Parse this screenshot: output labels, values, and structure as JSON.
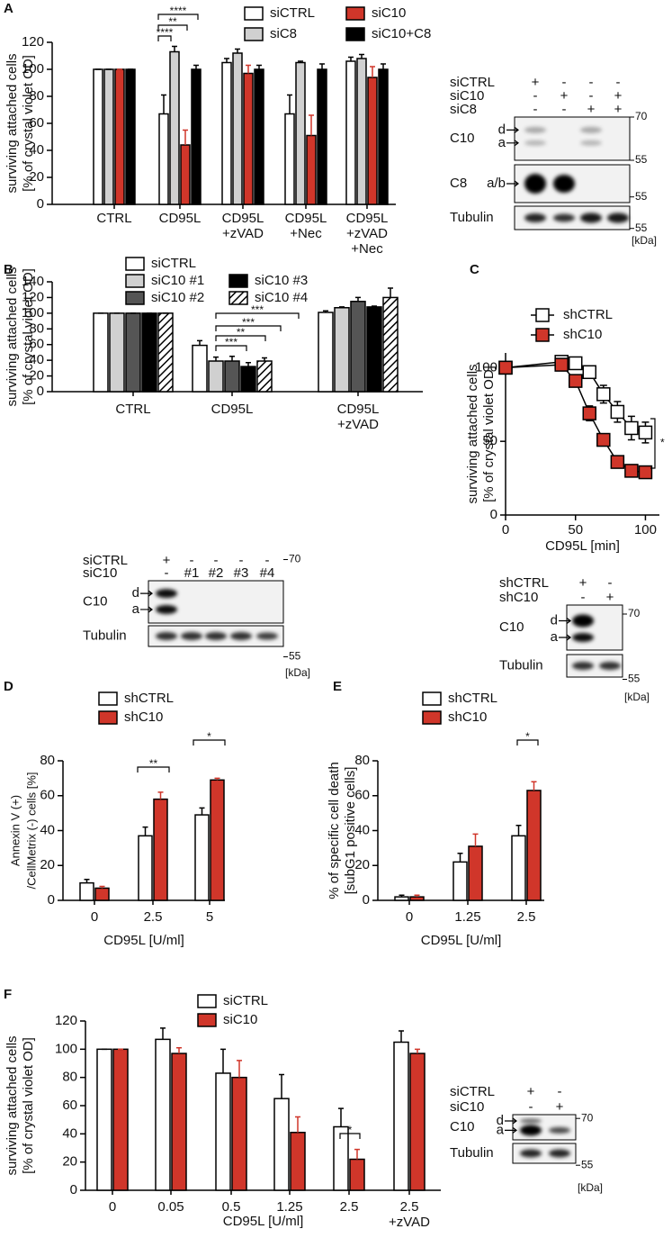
{
  "chart_data": [
    {
      "panel": "A",
      "type": "bar",
      "ylabel": [
        "surviving attached cells",
        "[% of crystal violet OD]"
      ],
      "categories": [
        "CTRL",
        "CD95L",
        "CD95L\n+zVAD",
        "CD95L\n+Nec",
        "CD95L\n+zVAD\n+Nec"
      ],
      "series": [
        {
          "name": "siCTRL",
          "color": "#ffffff",
          "values": [
            100,
            67,
            105,
            67,
            106
          ],
          "errors": [
            0,
            14,
            3,
            14,
            3
          ]
        },
        {
          "name": "siC8",
          "color": "#d0d0d0",
          "values": [
            100,
            113,
            112,
            105,
            108
          ],
          "errors": [
            0,
            4,
            3,
            1,
            3
          ]
        },
        {
          "name": "siC10",
          "color": "#d0362a",
          "values": [
            100,
            44,
            97,
            51,
            94
          ],
          "errors": [
            0,
            11,
            6,
            15,
            8
          ]
        },
        {
          "name": "siC10+C8",
          "color": "#000000",
          "values": [
            100,
            100,
            100,
            100,
            100
          ],
          "errors": [
            0,
            3,
            3,
            4,
            4
          ]
        }
      ],
      "ylim": [
        0,
        120
      ],
      "yticks": [
        0,
        20,
        40,
        60,
        80,
        100,
        120
      ],
      "annotations": [
        "****",
        "**",
        "****"
      ]
    },
    {
      "panel": "B",
      "type": "bar",
      "ylabel": [
        "surviving attached cells",
        "[% of crystal violet OD]"
      ],
      "categories": [
        "CTRL",
        "CD95L",
        "CD95L\n+zVAD"
      ],
      "series": [
        {
          "name": "siCTRL",
          "color": "#ffffff",
          "values": [
            100,
            59,
            101
          ],
          "errors": [
            0,
            6,
            2
          ]
        },
        {
          "name": "siC10 #1",
          "color": "#d0d0d0",
          "values": [
            100,
            39,
            107
          ],
          "errors": [
            0,
            5,
            1
          ]
        },
        {
          "name": "siC10 #2",
          "color": "#555555",
          "values": [
            100,
            39,
            115
          ],
          "errors": [
            0,
            6,
            5
          ]
        },
        {
          "name": "siC10 #3",
          "color": "#000000",
          "values": [
            100,
            32,
            108
          ],
          "errors": [
            0,
            5,
            1
          ]
        },
        {
          "name": "siC10 #4",
          "color": "#ffffff",
          "pattern": "hatch",
          "values": [
            100,
            39,
            120
          ],
          "errors": [
            0,
            4,
            12
          ]
        }
      ],
      "ylim": [
        0,
        140
      ],
      "yticks": [
        0,
        20,
        40,
        60,
        80,
        100,
        120,
        140
      ],
      "annotations": [
        "***",
        "***",
        "**",
        "***"
      ]
    },
    {
      "panel": "C",
      "type": "line",
      "ylabel": [
        "surviving attached cells",
        "[% of crystal violet OD]"
      ],
      "xlabel": "CD95L [min]",
      "x": [
        0,
        40,
        50,
        60,
        70,
        80,
        90,
        100
      ],
      "series": [
        {
          "name": "shCTRL",
          "color": "#ffffff",
          "values": [
            100,
            104,
            103,
            97,
            82,
            70,
            59,
            56
          ],
          "errors": [
            0,
            3,
            3,
            4,
            6,
            7,
            8,
            7
          ]
        },
        {
          "name": "shC10",
          "color": "#d0362a",
          "values": [
            100,
            102,
            91,
            69,
            51,
            36,
            30,
            29
          ],
          "errors": [
            0,
            2,
            3,
            5,
            4,
            3,
            3,
            2
          ]
        }
      ],
      "xlim": [
        0,
        110
      ],
      "xticks": [
        0,
        50,
        100
      ],
      "ylim": [
        0,
        110
      ],
      "yticks": [
        0,
        50,
        100
      ],
      "annotations": [
        "*"
      ]
    },
    {
      "panel": "D",
      "type": "bar",
      "ylabel": [
        "Annexin V (+)",
        "/CellMetrix (-) cells [%]"
      ],
      "xlabel": "CD95L [U/ml]",
      "categories": [
        "0",
        "2.5",
        "5"
      ],
      "series": [
        {
          "name": "shCTRL",
          "color": "#ffffff",
          "values": [
            10,
            37,
            49
          ],
          "errors": [
            2,
            5,
            4
          ]
        },
        {
          "name": "shC10",
          "color": "#d0362a",
          "values": [
            7,
            58,
            69
          ],
          "errors": [
            1,
            4,
            1
          ]
        }
      ],
      "ylim": [
        0,
        80
      ],
      "yticks": [
        0,
        20,
        40,
        60,
        80
      ],
      "annotations": [
        "**",
        "*"
      ]
    },
    {
      "panel": "E",
      "type": "bar",
      "ylabel": [
        "% of specific cell death",
        "[subG1 positive cells]"
      ],
      "xlabel": "CD95L [U/ml]",
      "categories": [
        "0",
        "1.25",
        "2.5"
      ],
      "series": [
        {
          "name": "shCTRL",
          "color": "#ffffff",
          "values": [
            2,
            22,
            37
          ],
          "errors": [
            1,
            5,
            6
          ]
        },
        {
          "name": "shC10",
          "color": "#d0362a",
          "values": [
            2,
            31,
            63
          ],
          "errors": [
            1,
            7,
            5
          ]
        }
      ],
      "ylim": [
        0,
        80
      ],
      "yticks": [
        0,
        20,
        40,
        60,
        80
      ],
      "annotations": [
        "*"
      ]
    },
    {
      "panel": "F",
      "type": "bar",
      "ylabel": [
        "surviving attached cells",
        "[% of crystal violet OD]"
      ],
      "xlabel": "CD95L [U/ml]",
      "categories": [
        "0",
        "0.05",
        "0.5",
        "1.25",
        "2.5",
        "2.5\n+zVAD"
      ],
      "series": [
        {
          "name": "siCTRL",
          "color": "#ffffff",
          "values": [
            100,
            107,
            83,
            65,
            45,
            105
          ],
          "errors": [
            0,
            8,
            17,
            17,
            13,
            8
          ]
        },
        {
          "name": "siC10",
          "color": "#d0362a",
          "values": [
            100,
            97,
            80,
            41,
            22,
            97
          ],
          "errors": [
            0,
            4,
            12,
            11,
            7,
            3
          ]
        }
      ],
      "ylim": [
        0,
        120
      ],
      "yticks": [
        0,
        20,
        40,
        60,
        80,
        100,
        120
      ],
      "annotations": [
        "*"
      ]
    }
  ],
  "blots": [
    {
      "conditions": [
        {
          "label": "siCTRL",
          "signs": [
            "+",
            "-",
            "-",
            "-"
          ]
        },
        {
          "label": "siC10",
          "signs": [
            "-",
            "+",
            "-",
            "+"
          ]
        },
        {
          "label": "siC8",
          "signs": [
            "-",
            "-",
            "+",
            "+"
          ]
        }
      ],
      "rows": [
        {
          "label": "C10",
          "bands": [
            "d",
            "a"
          ],
          "markers": [
            "70",
            "55"
          ]
        },
        {
          "label": "C8",
          "bands": [
            "a/b"
          ],
          "markers": [
            "55"
          ]
        },
        {
          "label": "Tubulin",
          "bands": [],
          "markers": [
            "55"
          ]
        }
      ],
      "unit": "[kDa]"
    },
    {
      "conditions": [
        {
          "label": "siCTRL",
          "signs": [
            "+",
            "-",
            "-",
            "-",
            "-"
          ]
        },
        {
          "label": "siC10",
          "signs": [
            "-",
            "#1",
            "#2",
            "#3",
            "#4"
          ]
        }
      ],
      "rows": [
        {
          "label": "C10",
          "bands": [
            "d",
            "a"
          ],
          "markers": [
            "70"
          ]
        },
        {
          "label": "Tubulin",
          "bands": [],
          "markers": [
            "55"
          ]
        }
      ],
      "unit": "[kDa]"
    },
    {
      "conditions": [
        {
          "label": "shCTRL",
          "signs": [
            "+",
            "-"
          ]
        },
        {
          "label": "shC10",
          "signs": [
            "-",
            "+"
          ]
        }
      ],
      "rows": [
        {
          "label": "C10",
          "bands": [
            "d",
            "a"
          ],
          "markers": [
            "70"
          ]
        },
        {
          "label": "Tubulin",
          "bands": [],
          "markers": [
            "55"
          ]
        }
      ],
      "unit": "[kDa]"
    },
    {
      "conditions": [
        {
          "label": "siCTRL",
          "signs": [
            "+",
            "-"
          ]
        },
        {
          "label": "siC10",
          "signs": [
            "-",
            "+"
          ]
        }
      ],
      "rows": [
        {
          "label": "C10",
          "bands": [
            "d",
            "a"
          ],
          "markers": [
            "70"
          ]
        },
        {
          "label": "Tubulin",
          "bands": [],
          "markers": [
            "55"
          ]
        }
      ],
      "unit": "[kDa]"
    }
  ]
}
